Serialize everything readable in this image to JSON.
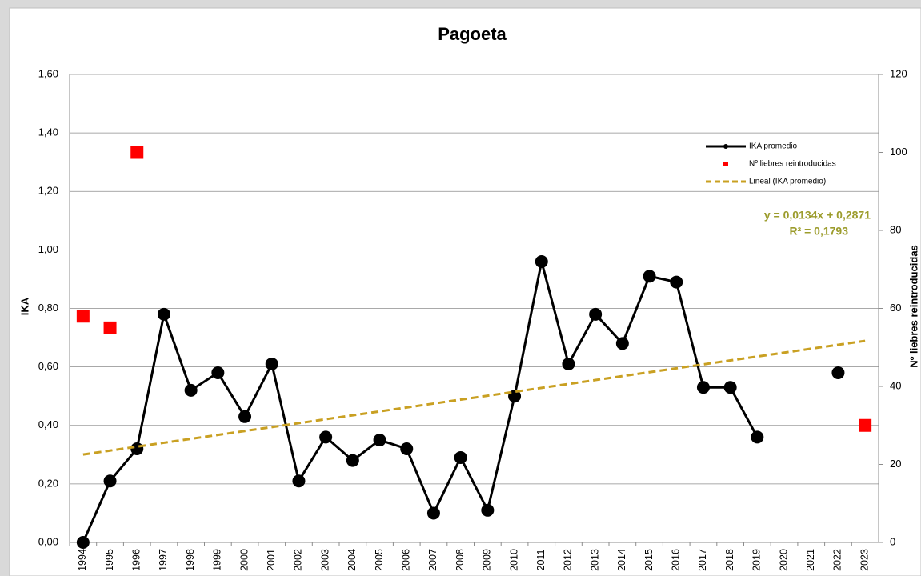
{
  "chart_data": {
    "type": "line",
    "title": "Pagoeta",
    "y_label": "IKA",
    "y2_label": "Nº liebres reintroducidas",
    "categories": [
      "1994",
      "1995",
      "1996",
      "1997",
      "1998",
      "1999",
      "2000",
      "2001",
      "2002",
      "2003",
      "2004",
      "2005",
      "2006",
      "2007",
      "2008",
      "2009",
      "2010",
      "2011",
      "2012",
      "2013",
      "2014",
      "2015",
      "2016",
      "2017",
      "2018",
      "2019",
      "2020",
      "2021",
      "2022",
      "2023"
    ],
    "series": [
      {
        "name": "IKA promedio",
        "color": "#000000",
        "style": "line",
        "values": [
          0.0,
          0.21,
          0.32,
          0.78,
          0.52,
          0.58,
          0.43,
          0.61,
          0.21,
          0.36,
          0.28,
          0.35,
          0.32,
          0.1,
          0.29,
          0.11,
          0.5,
          0.96,
          0.61,
          0.78,
          0.68,
          0.91,
          0.89,
          0.53,
          0.53,
          0.36,
          null,
          null,
          0.58,
          null
        ]
      },
      {
        "name": "Nº liebres reintroducidas",
        "color": "#ff0000",
        "style": "markers",
        "axis": "y2",
        "values": [
          58,
          55,
          100,
          null,
          null,
          null,
          null,
          null,
          null,
          null,
          null,
          null,
          null,
          null,
          null,
          null,
          null,
          null,
          null,
          null,
          null,
          null,
          null,
          null,
          null,
          null,
          null,
          null,
          null,
          30
        ]
      },
      {
        "name": "Lineal (IKA promedio)",
        "color": "#c9a022",
        "style": "dashed",
        "values": [
          0.3005,
          0.3139,
          0.3273,
          0.3407,
          0.3541,
          0.3675,
          0.3809,
          0.3943,
          0.4077,
          0.4211,
          0.4345,
          0.4479,
          0.4613,
          0.4747,
          0.4881,
          0.5015,
          0.5149,
          0.5283,
          0.5417,
          0.5551,
          0.5685,
          0.5819,
          0.5953,
          0.6087,
          0.6221,
          0.6355,
          0.6489,
          0.6623,
          0.6757,
          0.6891
        ]
      }
    ],
    "annotations": [
      "y = 0,0134x + 0,2871",
      "R² = 0,1793"
    ],
    "annotation_color": "#9c9c2c",
    "ylim": [
      0,
      1.6
    ],
    "yticks": [
      {
        "value": 0,
        "label": "0,00"
      },
      {
        "value": 0.2,
        "label": "0,20"
      },
      {
        "value": 0.4,
        "label": "0,40"
      },
      {
        "value": 0.6,
        "label": "0,60"
      },
      {
        "value": 0.8,
        "label": "0,80"
      },
      {
        "value": 1,
        "label": "1,00"
      },
      {
        "value": 1.2,
        "label": "1,20"
      },
      {
        "value": 1.4,
        "label": "1,40"
      },
      {
        "value": 1.6,
        "label": "1,60"
      }
    ],
    "y2lim": [
      0,
      120
    ],
    "y2ticks": [
      0,
      20,
      40,
      60,
      80,
      100,
      120
    ],
    "grid": true
  }
}
